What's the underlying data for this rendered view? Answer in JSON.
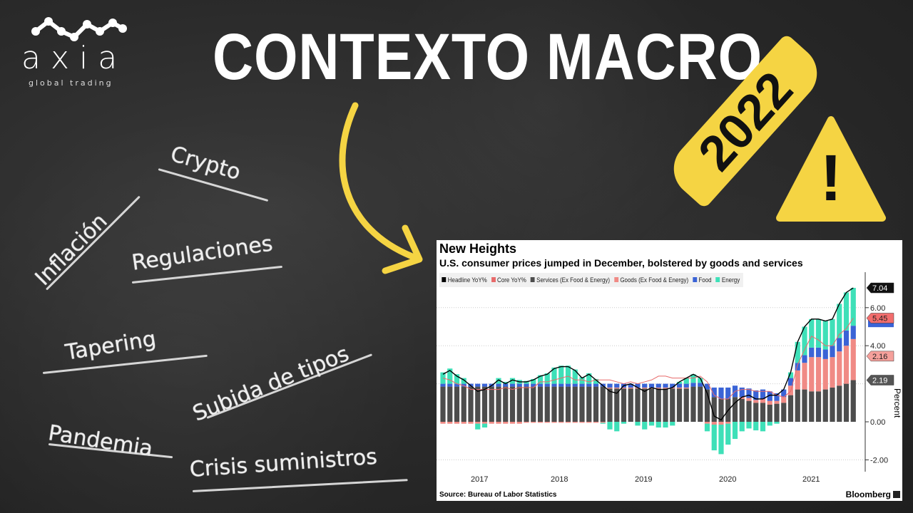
{
  "logo": {
    "name": "axia",
    "tagline": "global trading"
  },
  "title": "CONTEXTO MACRO",
  "badge_year": "2022",
  "warning_mark": "!",
  "icons": [
    "wave-logo-icon",
    "curved-arrow-icon",
    "warning-triangle-icon",
    "bloomberg-icon"
  ],
  "colors": {
    "accent": "#f5d443",
    "background": "#2b2b2b",
    "headline": "#000000",
    "core": "#e86a6a",
    "services": "#4d4d4d",
    "goods": "#f08a85",
    "food": "#3a63d6",
    "energy": "#3ee0b8"
  },
  "topics": [
    "Crypto",
    "Inflación",
    "Regulaciones",
    "Tapering",
    "Subida de tipos",
    "Pandemia",
    "Crisis suministros"
  ],
  "chart_data": {
    "type": "bar",
    "title": "New Heights",
    "subtitle": "U.S. consumer prices jumped in December, bolstered by goods and services",
    "ylabel": "Percent",
    "ylim": [
      -2.5,
      7.5
    ],
    "yticks": [
      "6.00",
      "4.00",
      "0.00",
      "-2.00"
    ],
    "xtick_labels": [
      "2017",
      "2018",
      "2019",
      "2020",
      "2021"
    ],
    "period": "monthly, Jan 2017 – Dec 2021",
    "grid": true,
    "legend_placement": "top",
    "source": "Source: Bureau of Labor Statistics",
    "brand": "Bloomberg",
    "last_value_labels": [
      {
        "series": "Headline YoY%",
        "value": "7.04"
      },
      {
        "series": "Core YoY%",
        "value": "5.45"
      },
      {
        "series": "Goods (Ex Food & Energy)",
        "value": "2.16"
      },
      {
        "series": "Services (Ex Food & Energy)",
        "value": "2.19"
      }
    ],
    "legend": [
      "Headline YoY%",
      "Core YoY%",
      "Services (Ex Food & Energy)",
      "Goods (Ex Food & Energy)",
      "Food",
      "Energy"
    ],
    "stacked_series": [
      {
        "name": "Services (Ex Food & Energy)",
        "color": "#4d4d4d",
        "values": [
          1.85,
          1.85,
          1.85,
          1.85,
          1.85,
          1.85,
          1.85,
          1.85,
          1.85,
          1.85,
          1.85,
          1.85,
          1.85,
          1.85,
          1.85,
          1.85,
          1.85,
          1.85,
          1.85,
          1.85,
          1.85,
          1.85,
          1.85,
          1.85,
          1.75,
          1.75,
          1.75,
          1.75,
          1.75,
          1.75,
          1.75,
          1.75,
          1.75,
          1.75,
          1.75,
          1.75,
          1.85,
          1.85,
          1.7,
          1.3,
          1.2,
          1.2,
          1.3,
          1.2,
          1.1,
          1.0,
          1.0,
          0.9,
          0.95,
          1.0,
          1.4,
          1.7,
          1.7,
          1.6,
          1.6,
          1.7,
          1.8,
          1.9,
          2.0,
          2.19
        ]
      },
      {
        "name": "Goods (Ex Food & Energy)",
        "color": "#f08a85",
        "values": [
          -0.1,
          -0.1,
          -0.1,
          -0.1,
          -0.1,
          -0.1,
          -0.1,
          -0.1,
          -0.1,
          -0.1,
          -0.1,
          -0.1,
          -0.05,
          -0.05,
          -0.05,
          -0.05,
          -0.05,
          -0.05,
          -0.05,
          -0.05,
          -0.05,
          -0.05,
          -0.05,
          -0.05,
          0.05,
          0.05,
          0.05,
          0.05,
          0.05,
          0.05,
          0.05,
          0.05,
          0.05,
          0.05,
          0.05,
          0.05,
          0,
          0,
          -0.1,
          -0.15,
          -0.15,
          -0.1,
          0,
          0.1,
          0.15,
          0.15,
          0.2,
          0.2,
          0.15,
          0.3,
          0.5,
          1.0,
          1.4,
          1.8,
          1.8,
          1.6,
          1.6,
          1.8,
          2.0,
          2.16
        ]
      },
      {
        "name": "Food",
        "color": "#3a63d6",
        "values": [
          0.15,
          0.15,
          0.15,
          0.15,
          0.15,
          0.15,
          0.15,
          0.15,
          0.15,
          0.15,
          0.15,
          0.15,
          0.15,
          0.15,
          0.15,
          0.15,
          0.15,
          0.15,
          0.15,
          0.15,
          0.15,
          0.15,
          0.15,
          0.15,
          0.2,
          0.2,
          0.2,
          0.2,
          0.2,
          0.2,
          0.2,
          0.2,
          0.2,
          0.2,
          0.2,
          0.2,
          0.2,
          0.2,
          0.3,
          0.5,
          0.6,
          0.6,
          0.6,
          0.5,
          0.5,
          0.5,
          0.5,
          0.5,
          0.4,
          0.4,
          0.4,
          0.4,
          0.4,
          0.5,
          0.5,
          0.5,
          0.6,
          0.7,
          0.8,
          0.7
        ]
      },
      {
        "name": "Energy",
        "color": "#3ee0b8",
        "values": [
          0.6,
          0.8,
          0.5,
          0.3,
          0.0,
          -0.3,
          -0.2,
          0.0,
          0.3,
          0.1,
          0.3,
          0.2,
          0.15,
          0.25,
          0.45,
          0.55,
          0.85,
          0.95,
          0.95,
          0.75,
          0.35,
          0.55,
          0.25,
          -0.05,
          -0.4,
          -0.5,
          -0.1,
          0,
          -0.2,
          -0.4,
          -0.2,
          -0.3,
          -0.3,
          -0.2,
          0.1,
          0.3,
          0.45,
          0.25,
          -0.4,
          -1.35,
          -1.55,
          -1.1,
          -0.9,
          -0.5,
          -0.35,
          -0.45,
          -0.5,
          -0.2,
          -0.1,
          0,
          0.3,
          1.1,
          1.5,
          1.5,
          1.5,
          1.5,
          1.4,
          1.8,
          2.0,
          1.99
        ]
      }
    ],
    "line_series": [
      {
        "name": "Headline YoY%",
        "color": "#000000",
        "values": [
          2.5,
          2.7,
          2.4,
          2.2,
          1.9,
          1.6,
          1.7,
          1.9,
          2.2,
          2.0,
          2.2,
          2.1,
          2.1,
          2.2,
          2.4,
          2.5,
          2.8,
          2.9,
          2.9,
          2.7,
          2.3,
          2.5,
          2.2,
          1.9,
          1.6,
          1.5,
          1.9,
          2.0,
          1.8,
          1.6,
          1.8,
          1.7,
          1.7,
          1.8,
          2.1,
          2.3,
          2.5,
          2.3,
          1.5,
          0.3,
          0.1,
          0.6,
          1.0,
          1.3,
          1.4,
          1.2,
          1.2,
          1.4,
          1.4,
          1.7,
          2.6,
          4.2,
          5.0,
          5.4,
          5.4,
          5.3,
          5.4,
          6.2,
          6.8,
          7.04
        ]
      },
      {
        "name": "Core YoY%",
        "color": "#e86a6a",
        "values": [
          2.3,
          2.2,
          2.0,
          1.9,
          1.7,
          1.7,
          1.7,
          1.7,
          1.7,
          1.8,
          1.7,
          1.8,
          1.8,
          1.8,
          2.1,
          2.1,
          2.2,
          2.3,
          2.4,
          2.2,
          2.2,
          2.1,
          2.2,
          2.2,
          2.2,
          2.1,
          2.0,
          2.1,
          2.0,
          2.1,
          2.2,
          2.4,
          2.4,
          2.3,
          2.3,
          2.3,
          2.3,
          2.4,
          2.1,
          1.4,
          1.2,
          1.2,
          1.6,
          1.7,
          1.7,
          1.6,
          1.6,
          1.6,
          1.4,
          1.3,
          1.6,
          3.0,
          3.8,
          4.5,
          4.3,
          4.0,
          4.0,
          4.6,
          4.9,
          5.45
        ]
      }
    ]
  }
}
